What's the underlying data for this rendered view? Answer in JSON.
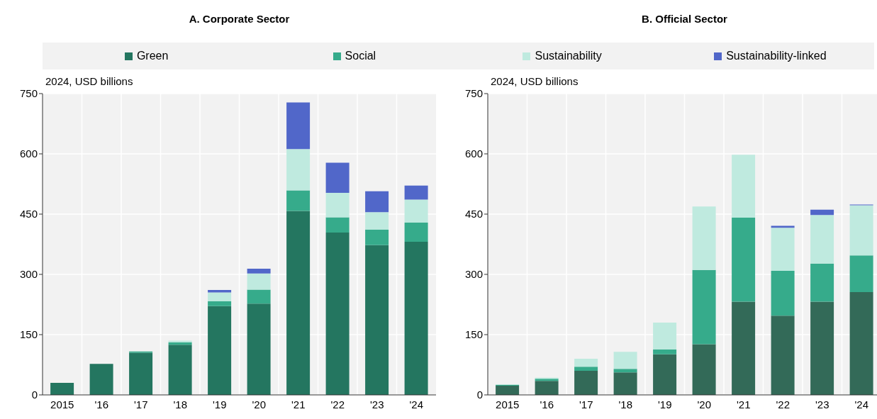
{
  "chart_data": [
    {
      "type": "bar",
      "title": "A. Corporate Sector",
      "ylabel": "2024, USD billions",
      "categories": [
        "2015",
        "'16",
        "'17",
        "'18",
        "'19",
        "'20",
        "'21",
        "'22",
        "'23",
        "'24"
      ],
      "stacked": true,
      "ylim": [
        0,
        750
      ],
      "yticks": [
        0,
        150,
        300,
        450,
        600,
        750
      ],
      "grid": true,
      "legend": "top",
      "series": [
        {
          "name": "Green",
          "color": "#247660",
          "values": [
            30,
            77,
            105,
            125,
            221,
            227,
            458,
            404,
            373,
            381
          ]
        },
        {
          "name": "Social",
          "color": "#36ab8b",
          "values": [
            0,
            0,
            3,
            6,
            12,
            35,
            51,
            38,
            38,
            48
          ]
        },
        {
          "name": "Sustainability",
          "color": "#bfeadf",
          "values": [
            0,
            0,
            null,
            4,
            22,
            40,
            103,
            61,
            44,
            57
          ]
        },
        {
          "name": "Sustainability-linked",
          "color": "#5167c9",
          "values": [
            0,
            0,
            0,
            0,
            6,
            12,
            116,
            75,
            52,
            35
          ]
        }
      ]
    },
    {
      "type": "bar",
      "title": "B. Official Sector",
      "ylabel": "2024, USD billions",
      "categories": [
        "2015",
        "'16",
        "'17",
        "'18",
        "'19",
        "'20",
        "'21",
        "'22",
        "'23",
        "'24"
      ],
      "stacked": true,
      "ylim": [
        0,
        750
      ],
      "yticks": [
        0,
        150,
        300,
        450,
        600,
        750
      ],
      "grid": true,
      "series": [
        {
          "color": "#336a58",
          "values": [
            23,
            35,
            60,
            56,
            101,
            126,
            232,
            197,
            232,
            256
          ]
        },
        {
          "color": "#36ab8b",
          "values": [
            2,
            5,
            10,
            9,
            12,
            185,
            209,
            112,
            95,
            91
          ]
        },
        {
          "color": "#bfeadf",
          "values": [
            1,
            3,
            20,
            42,
            67,
            158,
            157,
            107,
            121,
            125
          ]
        },
        {
          "color": "#5167c9",
          "values": [
            0,
            0,
            0,
            0,
            0,
            0,
            0,
            5,
            13,
            2
          ]
        }
      ]
    }
  ]
}
